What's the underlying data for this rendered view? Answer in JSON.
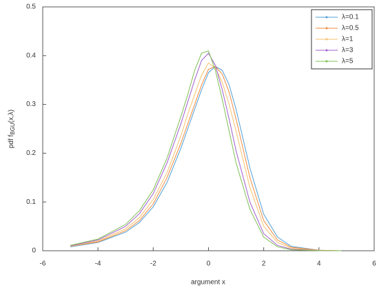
{
  "chart_data": {
    "type": "line",
    "xlabel": "argument x",
    "ylabel": {
      "main": "pdf f",
      "sub": "BGU",
      "args": "(x,λ)"
    },
    "x": [
      -5,
      -4,
      -3,
      -2.5,
      -2,
      -1.5,
      -1,
      -0.75,
      -0.5,
      -0.25,
      0,
      0.25,
      0.5,
      0.75,
      1,
      1.5,
      2,
      2.5,
      3,
      4,
      4.8
    ],
    "series": [
      {
        "name": "λ=0.1",
        "color": "#4f9fd8",
        "values": [
          0.008,
          0.017,
          0.038,
          0.058,
          0.09,
          0.14,
          0.21,
          0.25,
          0.29,
          0.33,
          0.365,
          0.378,
          0.37,
          0.34,
          0.29,
          0.17,
          0.075,
          0.028,
          0.009,
          0.001,
          0
        ]
      },
      {
        "name": "λ=0.5",
        "color": "#f08a3c",
        "values": [
          0.009,
          0.018,
          0.041,
          0.062,
          0.096,
          0.15,
          0.22,
          0.26,
          0.3,
          0.34,
          0.372,
          0.378,
          0.362,
          0.325,
          0.27,
          0.15,
          0.062,
          0.022,
          0.007,
          0.001,
          0
        ]
      },
      {
        "name": "λ=1",
        "color": "#f5c16c",
        "values": [
          0.009,
          0.02,
          0.045,
          0.068,
          0.105,
          0.16,
          0.235,
          0.28,
          0.32,
          0.36,
          0.385,
          0.375,
          0.345,
          0.3,
          0.245,
          0.13,
          0.05,
          0.017,
          0.005,
          0.0005,
          0
        ]
      },
      {
        "name": "λ=3",
        "color": "#a05ccd",
        "values": [
          0.01,
          0.022,
          0.05,
          0.076,
          0.117,
          0.18,
          0.26,
          0.305,
          0.35,
          0.39,
          0.405,
          0.38,
          0.33,
          0.27,
          0.205,
          0.1,
          0.035,
          0.011,
          0.003,
          0.0003,
          0
        ]
      },
      {
        "name": "λ=5",
        "color": "#7cc050",
        "values": [
          0.011,
          0.024,
          0.054,
          0.082,
          0.125,
          0.19,
          0.275,
          0.32,
          0.37,
          0.405,
          0.41,
          0.37,
          0.31,
          0.245,
          0.18,
          0.085,
          0.028,
          0.008,
          0.002,
          0.0002,
          0
        ]
      }
    ],
    "xlim": [
      -6,
      6
    ],
    "ylim": [
      0,
      0.5
    ],
    "xticks": [
      -6,
      -4,
      -2,
      0,
      2,
      4,
      6
    ],
    "yticks": [
      0,
      0.1,
      0.2,
      0.3,
      0.4,
      0.5
    ],
    "grid": false,
    "legend": "upper-right"
  }
}
